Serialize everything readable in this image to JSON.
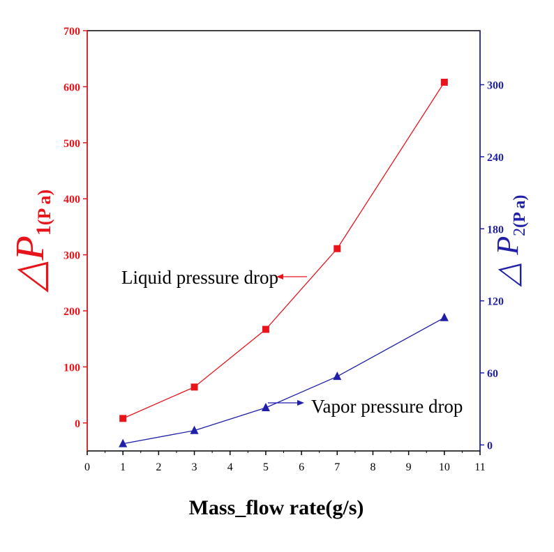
{
  "chart_data": {
    "type": "line",
    "x": [
      1,
      3,
      5,
      7,
      10
    ],
    "xlabel": "Mass_flow rate(g/s)",
    "xlim": [
      0,
      11
    ],
    "xticks": [
      "0",
      "1",
      "2",
      "3",
      "4",
      "5",
      "6",
      "7",
      "8",
      "9",
      "10",
      "11"
    ],
    "y1": {
      "label_symbol": "△P",
      "label_sub": "1",
      "label_unit": "(P a)",
      "lim": [
        -50,
        700
      ],
      "ticks": [
        "0",
        "100",
        "200",
        "300",
        "400",
        "500",
        "600",
        "700"
      ],
      "color": "#e8141b"
    },
    "y2": {
      "label_symbol": "△ P",
      "label_sub": "2",
      "label_unit": "(P a)",
      "lim": [
        -5,
        345
      ],
      "ticks": [
        "0",
        "60",
        "120",
        "180",
        "240",
        "300"
      ],
      "color": "#1f1fa8"
    },
    "series": [
      {
        "axis": "left",
        "marker": "square",
        "color": "#e8141b",
        "values": [
          8,
          64,
          167,
          311,
          608
        ]
      },
      {
        "axis": "right",
        "marker": "triangle",
        "color": "#1f1fa8",
        "values": [
          1,
          12,
          31,
          57,
          106
        ]
      }
    ],
    "annotations": [
      {
        "text": "Liquid pressure drop",
        "arrow_color": "#e8141b",
        "series": 0
      },
      {
        "text": "Vapor pressure drop",
        "arrow_color": "#1f1fa8",
        "series": 1
      }
    ]
  }
}
